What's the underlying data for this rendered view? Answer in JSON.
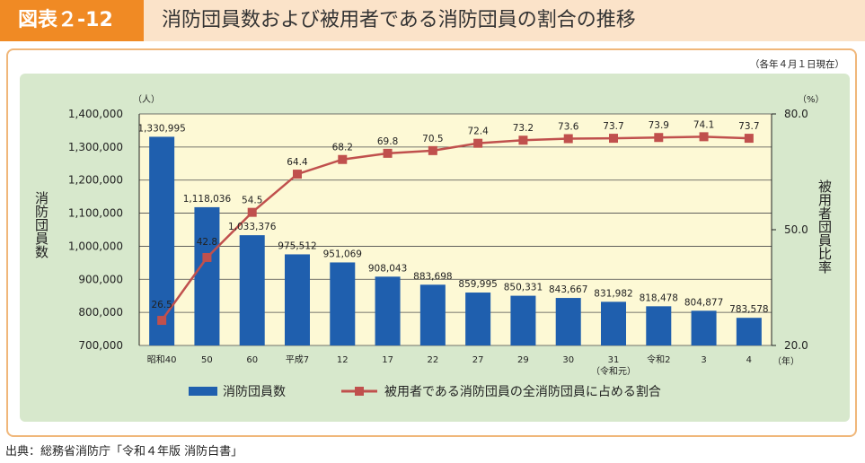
{
  "header": {
    "badge": "図表２-12",
    "title": "消防団員数および被用者である消防団員の割合の推移"
  },
  "source": "出典：総務省消防庁「令和４年版 消防白書」",
  "chart_data": {
    "type": "bar",
    "note": "（各年４月１日現在）",
    "categories": [
      "昭和40",
      "50",
      "60",
      "平成7",
      "12",
      "17",
      "22",
      "27",
      "29",
      "30",
      "31",
      "令和2",
      "3",
      "4"
    ],
    "category_sublabels": {
      "31": "（令和元）"
    },
    "x_unit": "（年）",
    "ylabel": "消防団員数",
    "y_unit": "（人）",
    "ylim": [
      700000,
      1400000
    ],
    "y_ticks": [
      "700,000",
      "800,000",
      "900,000",
      "1,000,000",
      "1,100,000",
      "1,200,000",
      "1,300,000",
      "1,400,000"
    ],
    "y2label": "被用者団員比率",
    "y2_unit": "（%）",
    "y2lim": [
      20.0,
      80.0
    ],
    "y2_ticks": [
      "20.0",
      "50.0",
      "80.0"
    ],
    "series": [
      {
        "name": "消防団員数",
        "kind": "bar",
        "color": "#1f5fae",
        "values": [
          1330995,
          1118036,
          1033376,
          975512,
          951069,
          908043,
          883698,
          859995,
          850331,
          843667,
          831982,
          818478,
          804877,
          783578
        ],
        "labels": [
          "1,330,995",
          "1,118,036",
          "1,033,376",
          "975,512",
          "951,069",
          "908,043",
          "883,698",
          "859,995",
          "850,331",
          "843,667",
          "831,982",
          "818,478",
          "804,877",
          "783,578"
        ]
      },
      {
        "name": "被用者である消防団員の全消防団員に占める割合",
        "kind": "line",
        "color": "#c0504d",
        "values": [
          26.5,
          42.8,
          54.5,
          64.4,
          68.2,
          69.8,
          70.5,
          72.4,
          73.2,
          73.6,
          73.7,
          73.9,
          74.1,
          73.7
        ],
        "labels": [
          "26.5",
          "42.8",
          "54.5",
          "64.4",
          "68.2",
          "69.8",
          "70.5",
          "72.4",
          "73.2",
          "73.6",
          "73.7",
          "73.9",
          "74.1",
          "73.7"
        ]
      }
    ],
    "colors": {
      "outer_bg": "#d7e8cc",
      "plot_bg": "#fdf9d5",
      "grid": "#4a4a4a"
    }
  }
}
